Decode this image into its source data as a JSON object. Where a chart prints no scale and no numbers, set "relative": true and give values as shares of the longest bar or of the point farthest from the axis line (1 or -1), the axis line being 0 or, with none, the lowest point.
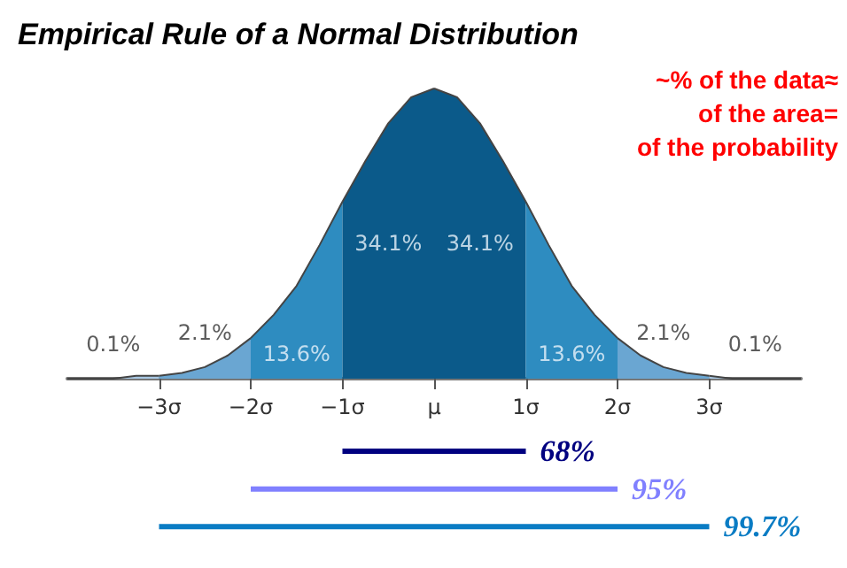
{
  "chart_data": {
    "type": "area",
    "title": "Empirical Rule of a Normal Distribution",
    "relative": true,
    "xlim": [
      -4,
      4
    ],
    "xticks": [
      {
        "value": -3,
        "label": "−3σ"
      },
      {
        "value": -2,
        "label": "−2σ"
      },
      {
        "value": -1,
        "label": "−1σ"
      },
      {
        "value": 0,
        "label": "μ"
      },
      {
        "value": 1,
        "label": "1σ"
      },
      {
        "value": 2,
        "label": "2σ"
      },
      {
        "value": 3,
        "label": "3σ"
      }
    ],
    "series": [
      {
        "color": "#a8c8e4",
        "x": [
          -4,
          -3.75,
          -3.5,
          -3.25,
          -3
        ],
        "values": [
          0,
          0,
          0,
          0.01,
          0.01
        ]
      },
      {
        "color": "#6aa6d2",
        "x": [
          -3,
          -2.75,
          -2.5,
          -2.25,
          -2
        ],
        "values": [
          0.01,
          0.02,
          0.04,
          0.08,
          0.14
        ]
      },
      {
        "color": "#2e8cc0",
        "x": [
          -2,
          -1.75,
          -1.5,
          -1.25,
          -1
        ],
        "values": [
          0.14,
          0.22,
          0.32,
          0.46,
          0.61
        ]
      },
      {
        "color": "#0b5a8a",
        "x": [
          -1,
          -0.75,
          -0.5,
          -0.25,
          0
        ],
        "values": [
          0.61,
          0.75,
          0.88,
          0.97,
          1
        ]
      },
      {
        "color": "#0b5a8a",
        "x": [
          0,
          0.25,
          0.5,
          0.75,
          1
        ],
        "values": [
          1,
          0.97,
          0.88,
          0.75,
          0.61
        ]
      },
      {
        "color": "#2e8cc0",
        "x": [
          1,
          1.25,
          1.5,
          1.75,
          2
        ],
        "values": [
          0.61,
          0.46,
          0.32,
          0.22,
          0.14
        ]
      },
      {
        "color": "#6aa6d2",
        "x": [
          2,
          2.25,
          2.5,
          2.75,
          3
        ],
        "values": [
          0.14,
          0.08,
          0.04,
          0.02,
          0.01
        ]
      },
      {
        "color": "#a8c8e4",
        "x": [
          3,
          3.25,
          3.5,
          3.75,
          4
        ],
        "values": [
          0.01,
          0,
          0,
          0,
          0
        ]
      },
      {
        "type": "line",
        "name": "68%",
        "color": "#000080",
        "x": [
          -1,
          1
        ],
        "values": [
          -0.25,
          -0.25
        ]
      },
      {
        "type": "line",
        "name": "95%",
        "color": "#8080ff",
        "x": [
          -2,
          2
        ],
        "values": [
          -0.38,
          -0.38
        ]
      },
      {
        "type": "line",
        "name": "99.7%",
        "color": "#0a7cc4",
        "x": [
          -3,
          3
        ],
        "values": [
          -0.51,
          -0.51
        ]
      }
    ],
    "annotations": [
      "0.1%",
      "2.1%",
      "13.6%",
      "34.1%",
      "34.1%",
      "13.6%",
      "2.1%",
      "0.1%",
      "~% of the data≈",
      "of the area=",
      "of the probability"
    ]
  }
}
